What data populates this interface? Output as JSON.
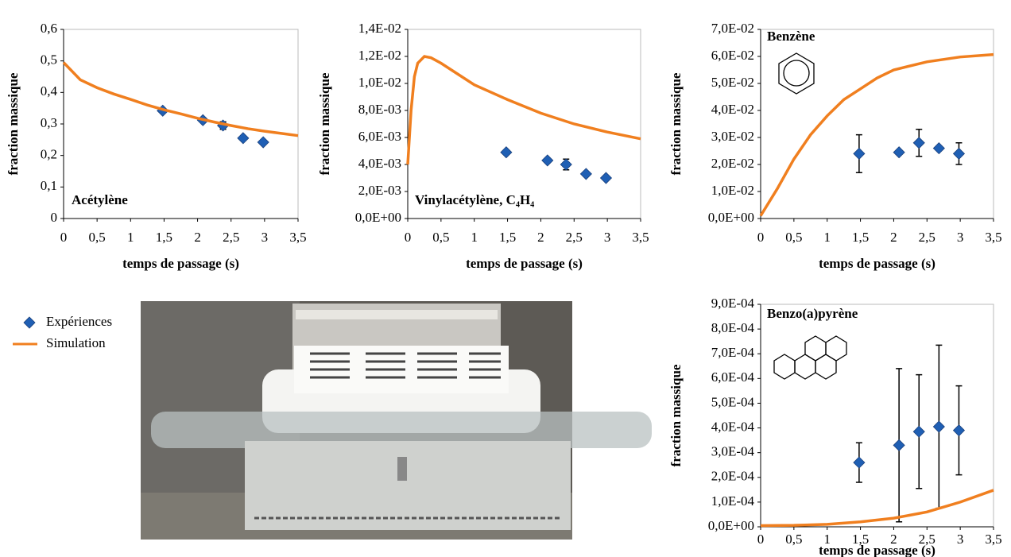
{
  "legend": [
    "Expériences",
    "Simulation"
  ],
  "chart_data": [
    {
      "type": "scatter",
      "annotation": "Acétylène",
      "xlabel": "temps de passage (s)",
      "ylabel": "fraction massique",
      "xlim": [
        0,
        3.5
      ],
      "xticks": [
        0,
        {
          "value": 0.5,
          "label": "0,5"
        },
        1,
        {
          "value": 1.5,
          "label": "1,5"
        },
        2,
        {
          "value": 2.5,
          "label": "2,5"
        },
        3,
        {
          "value": 3.5,
          "label": "3,5"
        }
      ],
      "ylim": [
        0,
        0.6
      ],
      "yticks": [
        0,
        {
          "value": 0.1,
          "label": "0,1"
        },
        {
          "value": 0.2,
          "label": "0,2"
        },
        {
          "value": 0.3,
          "label": "0,3"
        },
        {
          "value": 0.4,
          "label": "0,4"
        },
        {
          "value": 0.5,
          "label": "0,5"
        },
        {
          "value": 0.6,
          "label": "0,6"
        }
      ],
      "series": [
        {
          "color": "#1f5fb4",
          "marker": "diamond",
          "x": [
            1.48,
            2.08,
            2.38,
            2.68,
            2.98
          ],
          "values": [
            0.342,
            0.312,
            0.295,
            0.255,
            0.242
          ],
          "errors": [
            null,
            null,
            0.012,
            null,
            null
          ]
        },
        {
          "color": "#f07f1f",
          "marker": "line",
          "x": [
            0,
            0.25,
            0.5,
            0.75,
            1,
            1.25,
            1.5,
            1.75,
            2,
            2.25,
            2.5,
            2.75,
            3,
            3.25,
            3.5
          ],
          "values": [
            0.495,
            0.44,
            0.415,
            0.395,
            0.378,
            0.36,
            0.345,
            0.332,
            0.318,
            0.306,
            0.295,
            0.285,
            0.277,
            0.27,
            0.263
          ]
        }
      ]
    },
    {
      "type": "scatter",
      "annotation": "Vinylacétylène, C₄H₄",
      "xlabel": "temps de passage (s)",
      "ylabel": "fraction massique",
      "xlim": [
        0,
        3.5
      ],
      "xticks": [
        0,
        {
          "value": 0.5,
          "label": "0,5"
        },
        1,
        {
          "value": 1.5,
          "label": "1,5"
        },
        2,
        {
          "value": 2.5,
          "label": "2,5"
        },
        3,
        {
          "value": 3.5,
          "label": "3,5"
        }
      ],
      "ylim": [
        0,
        0.014
      ],
      "yticks": [
        {
          "value": 0,
          "label": "0,0E+00"
        },
        {
          "value": 0.002,
          "label": "2,0E-03"
        },
        {
          "value": 0.004,
          "label": "4,0E-03"
        },
        {
          "value": 0.006,
          "label": "6,0E-03"
        },
        {
          "value": 0.008,
          "label": "8,0E-03"
        },
        {
          "value": 0.01,
          "label": "1,0E-02"
        },
        {
          "value": 0.012,
          "label": "1,2E-02"
        },
        {
          "value": 0.014,
          "label": "1,4E-02"
        }
      ],
      "series": [
        {
          "color": "#1f5fb4",
          "marker": "diamond",
          "x": [
            1.48,
            2.1,
            2.38,
            2.68,
            2.98
          ],
          "values": [
            0.0049,
            0.0043,
            0.004,
            0.0033,
            0.003
          ],
          "errors": [
            null,
            null,
            0.0004,
            null,
            null
          ]
        },
        {
          "color": "#f07f1f",
          "marker": "line",
          "x": [
            0,
            0.05,
            0.1,
            0.15,
            0.25,
            0.35,
            0.5,
            0.75,
            1,
            1.5,
            2,
            2.5,
            3,
            3.5
          ],
          "values": [
            0.004,
            0.008,
            0.0105,
            0.0115,
            0.012,
            0.0119,
            0.0115,
            0.0107,
            0.0099,
            0.0088,
            0.0078,
            0.007,
            0.0064,
            0.0059
          ]
        }
      ]
    },
    {
      "type": "scatter",
      "annotation": "Benzène",
      "xlabel": "temps de passage (s)",
      "ylabel": "fraction massique",
      "xlim": [
        0,
        3.5
      ],
      "xticks": [
        0,
        {
          "value": 0.5,
          "label": "0,5"
        },
        1,
        {
          "value": 1.5,
          "label": "1,5"
        },
        2,
        {
          "value": 2.5,
          "label": "2,5"
        },
        3,
        {
          "value": 3.5,
          "label": "3,5"
        }
      ],
      "ylim": [
        0,
        0.07
      ],
      "yticks": [
        {
          "value": 0,
          "label": "0,0E+00"
        },
        {
          "value": 0.01,
          "label": "1,0E-02"
        },
        {
          "value": 0.02,
          "label": "2,0E-02"
        },
        {
          "value": 0.03,
          "label": "3,0E-02"
        },
        {
          "value": 0.04,
          "label": "4,0E-02"
        },
        {
          "value": 0.05,
          "label": "5,0E-02"
        },
        {
          "value": 0.06,
          "label": "6,0E-02"
        },
        {
          "value": 0.07,
          "label": "7,0E-02"
        }
      ],
      "series": [
        {
          "color": "#1f5fb4",
          "marker": "diamond",
          "x": [
            1.48,
            2.08,
            2.38,
            2.68,
            2.98
          ],
          "values": [
            0.024,
            0.0245,
            0.028,
            0.026,
            0.024
          ],
          "errors": [
            0.007,
            null,
            0.005,
            null,
            0.004
          ]
        },
        {
          "color": "#f07f1f",
          "marker": "line",
          "x": [
            0,
            0.25,
            0.5,
            0.75,
            1,
            1.25,
            1.5,
            1.75,
            2,
            2.5,
            3,
            3.5
          ],
          "values": [
            0.001,
            0.011,
            0.022,
            0.031,
            0.038,
            0.044,
            0.048,
            0.052,
            0.055,
            0.058,
            0.0598,
            0.0607
          ]
        }
      ]
    },
    {
      "type": "scatter",
      "annotation": "Benzo(a)pyrène",
      "xlabel": "temps de passage (s)",
      "ylabel": "fraction massique",
      "xlim": [
        0,
        3.5
      ],
      "xticks": [
        0,
        {
          "value": 0.5,
          "label": "0,5"
        },
        1,
        {
          "value": 1.5,
          "label": "1,5"
        },
        2,
        {
          "value": 2.5,
          "label": "2,5"
        },
        3,
        {
          "value": 3.5,
          "label": "3,5"
        }
      ],
      "ylim": [
        0,
        0.0009
      ],
      "yticks": [
        {
          "value": 0,
          "label": "0,0E+00"
        },
        {
          "value": 0.0001,
          "label": "1,0E-04"
        },
        {
          "value": 0.0002,
          "label": "2,0E-04"
        },
        {
          "value": 0.0003,
          "label": "3,0E-04"
        },
        {
          "value": 0.0004,
          "label": "4,0E-04"
        },
        {
          "value": 0.0005,
          "label": "5,0E-04"
        },
        {
          "value": 0.0006,
          "label": "6,0E-04"
        },
        {
          "value": 0.0007,
          "label": "7,0E-04"
        },
        {
          "value": 0.0008,
          "label": "8,0E-04"
        },
        {
          "value": 0.0009,
          "label": "9,0E-04"
        }
      ],
      "series": [
        {
          "color": "#1f5fb4",
          "marker": "diamond",
          "x": [
            1.48,
            2.08,
            2.38,
            2.68,
            2.98
          ],
          "values": [
            0.00026,
            0.00033,
            0.000385,
            0.000405,
            0.00039
          ],
          "errors": [
            8e-05,
            0.00031,
            0.00023,
            0.00033,
            0.00018
          ]
        },
        {
          "color": "#f07f1f",
          "marker": "line",
          "x": [
            0,
            0.5,
            1,
            1.5,
            2,
            2.5,
            3,
            3.5
          ],
          "values": [
            5e-06,
            6e-06,
            1e-05,
            2e-05,
            3.5e-05,
            6e-05,
            0.0001,
            0.000148
          ]
        }
      ]
    }
  ]
}
